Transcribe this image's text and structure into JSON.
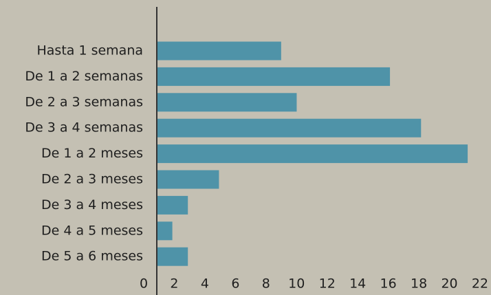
{
  "chart_data": {
    "type": "bar",
    "orientation": "horizontal",
    "categories": [
      "Hasta 1 semana",
      "De 1 a 2 semanas",
      "De 2 a 3 semanas",
      "De 3 a 4 semanas",
      "De 1 a 2 meses",
      "De 2 a 3 meses",
      "De 3 a 4 meses",
      "De 4 a 5 meses",
      "De 5 a 6 meses"
    ],
    "values": [
      8,
      15,
      9,
      17,
      20,
      4,
      2,
      1,
      2
    ],
    "color": "#4f93a8",
    "xlim": [
      0,
      21.5
    ],
    "xticks": [
      0,
      2,
      4,
      6,
      8,
      10,
      12,
      14,
      16,
      18,
      20,
      22
    ],
    "grid": false
  }
}
